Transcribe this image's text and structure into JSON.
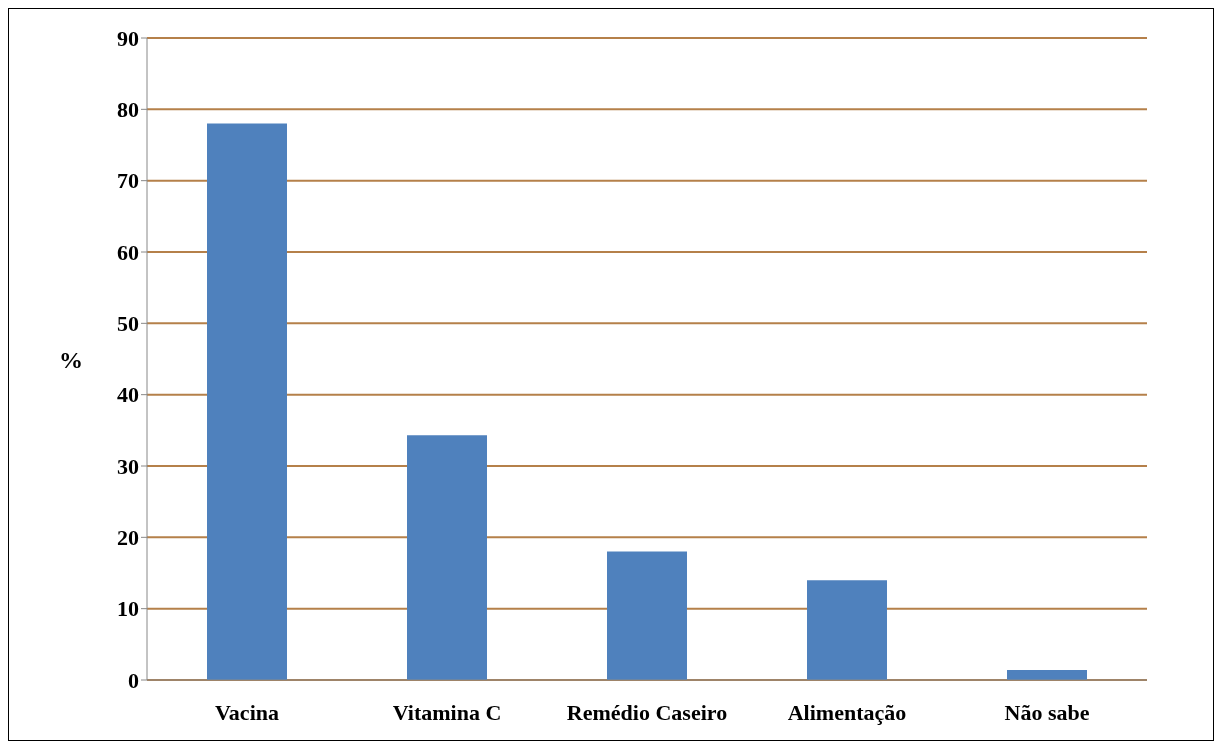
{
  "chart_data": {
    "type": "bar",
    "ylabel": "%",
    "categories": [
      "Vacina",
      "Vitamina C",
      "Remédio Caseiro",
      "Alimentação",
      "Não sabe"
    ],
    "values": [
      78,
      34.3,
      18,
      14,
      1.4
    ],
    "color": "#4f81bd",
    "ylim": [
      0,
      90
    ],
    "yticks": [
      0,
      10,
      20,
      30,
      40,
      50,
      60,
      70,
      80,
      90
    ],
    "grid": "y"
  }
}
